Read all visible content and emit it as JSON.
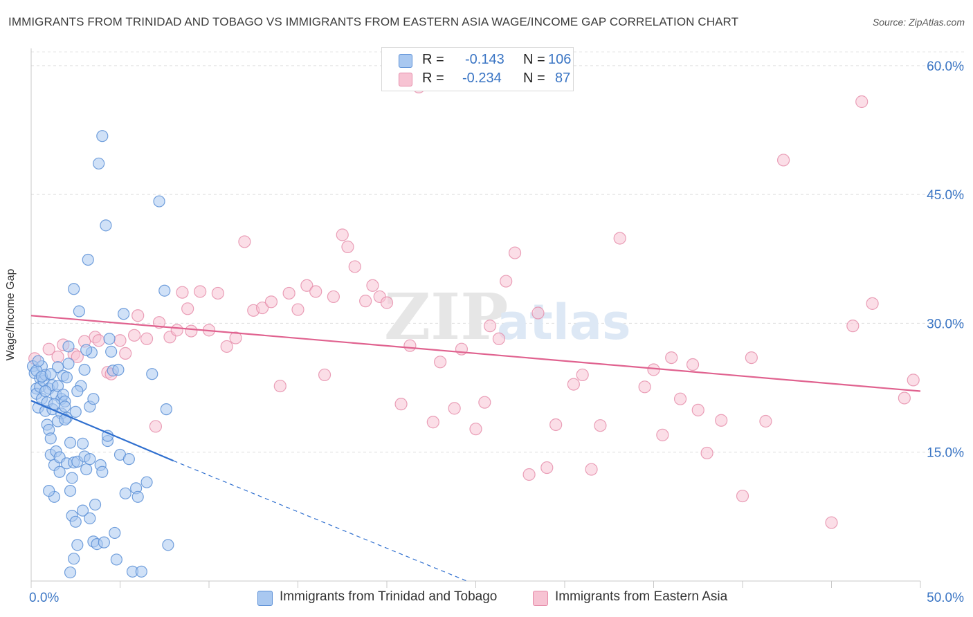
{
  "title": "IMMIGRANTS FROM TRINIDAD AND TOBAGO VS IMMIGRANTS FROM EASTERN ASIA WAGE/INCOME GAP CORRELATION CHART",
  "source": "Source: ZipAtlas.com",
  "watermark": {
    "zip": "ZIP",
    "atlas": "atlas"
  },
  "legend": {
    "r_label": "R =",
    "n_label": "N =",
    "rows": [
      {
        "r": "-0.143",
        "n": "106",
        "color": "#a9c8f0",
        "border": "#5b8fd6"
      },
      {
        "r": "-0.234",
        "n": "87",
        "color": "#f7c3d3",
        "border": "#e58aa8"
      }
    ]
  },
  "chart_data": {
    "type": "scatter",
    "title": "IMMIGRANTS FROM TRINIDAD AND TOBAGO VS IMMIGRANTS FROM EASTERN ASIA WAGE/INCOME GAP CORRELATION CHART",
    "xlabel": "",
    "ylabel": "Wage/Income Gap",
    "xlim": [
      0,
      50
    ],
    "ylim": [
      0,
      62
    ],
    "x_tick_labels": [
      "0.0%",
      "50.0%"
    ],
    "y_ticks": [
      15,
      30,
      45,
      60
    ],
    "y_tick_labels": [
      "15.0%",
      "30.0%",
      "45.0%",
      "60.0%"
    ],
    "grid": true,
    "series": [
      {
        "name": "Immigrants from Trinidad and Tobago",
        "color": "#5b8fd6",
        "fill": "#a9c8f0",
        "trend": {
          "x": [
            0,
            8
          ],
          "y": [
            21.0,
            14.0
          ],
          "dashed_to": [
            24.5,
            0
          ]
        },
        "points": [
          [
            0.1,
            25.0
          ],
          [
            0.2,
            24.2
          ],
          [
            0.3,
            22.4
          ],
          [
            0.3,
            21.8
          ],
          [
            0.4,
            20.2
          ],
          [
            0.5,
            23.6
          ],
          [
            0.5,
            22.6
          ],
          [
            0.6,
            25.0
          ],
          [
            0.6,
            21.2
          ],
          [
            0.7,
            23.3
          ],
          [
            0.8,
            24.0
          ],
          [
            0.8,
            19.8
          ],
          [
            0.9,
            20.8
          ],
          [
            0.9,
            18.2
          ],
          [
            1.0,
            22.4
          ],
          [
            1.0,
            17.6
          ],
          [
            1.1,
            16.6
          ],
          [
            1.1,
            14.7
          ],
          [
            1.2,
            22.8
          ],
          [
            1.2,
            20.0
          ],
          [
            1.3,
            13.5
          ],
          [
            1.3,
            9.8
          ],
          [
            1.4,
            15.1
          ],
          [
            1.4,
            21.7
          ],
          [
            1.5,
            22.7
          ],
          [
            1.5,
            24.9
          ],
          [
            1.6,
            14.4
          ],
          [
            1.6,
            12.7
          ],
          [
            1.7,
            21.2
          ],
          [
            1.7,
            19.5
          ],
          [
            1.8,
            23.9
          ],
          [
            1.8,
            21.7
          ],
          [
            1.9,
            20.9
          ],
          [
            1.9,
            20.3
          ],
          [
            2.0,
            19.0
          ],
          [
            2.0,
            13.7
          ],
          [
            2.1,
            27.3
          ],
          [
            2.1,
            25.3
          ],
          [
            2.2,
            16.1
          ],
          [
            2.2,
            10.5
          ],
          [
            2.3,
            7.6
          ],
          [
            2.3,
            12.0
          ],
          [
            2.4,
            13.8
          ],
          [
            2.4,
            34.0
          ],
          [
            2.5,
            6.9
          ],
          [
            2.5,
            19.7
          ],
          [
            2.6,
            13.9
          ],
          [
            2.7,
            31.4
          ],
          [
            2.8,
            22.7
          ],
          [
            2.9,
            8.2
          ],
          [
            3.0,
            14.5
          ],
          [
            3.0,
            24.6
          ],
          [
            3.1,
            13.0
          ],
          [
            3.2,
            37.4
          ],
          [
            3.3,
            7.3
          ],
          [
            3.3,
            20.3
          ],
          [
            3.4,
            26.6
          ],
          [
            3.5,
            21.2
          ],
          [
            3.5,
            4.6
          ],
          [
            3.6,
            8.9
          ],
          [
            3.7,
            4.3
          ],
          [
            3.8,
            48.6
          ],
          [
            3.9,
            13.5
          ],
          [
            4.0,
            12.7
          ],
          [
            4.1,
            4.5
          ],
          [
            4.2,
            41.4
          ],
          [
            4.3,
            16.3
          ],
          [
            4.3,
            16.9
          ],
          [
            4.4,
            28.2
          ],
          [
            4.5,
            26.7
          ],
          [
            4.6,
            24.5
          ],
          [
            4.7,
            5.6
          ],
          [
            4.8,
            2.5
          ],
          [
            4.9,
            24.6
          ],
          [
            5.0,
            14.7
          ],
          [
            5.2,
            31.1
          ],
          [
            5.3,
            10.2
          ],
          [
            5.5,
            14.2
          ],
          [
            5.7,
            1.1
          ],
          [
            5.9,
            10.8
          ],
          [
            6.0,
            9.8
          ],
          [
            6.2,
            1.1
          ],
          [
            6.5,
            11.5
          ],
          [
            6.8,
            24.1
          ],
          [
            7.2,
            44.2
          ],
          [
            7.5,
            33.8
          ],
          [
            7.6,
            20.0
          ],
          [
            7.7,
            4.2
          ],
          [
            2.4,
            2.6
          ],
          [
            2.2,
            1.0
          ],
          [
            1.0,
            10.5
          ],
          [
            2.6,
            4.2
          ],
          [
            3.1,
            26.9
          ],
          [
            2.0,
            23.7
          ],
          [
            2.6,
            22.1
          ],
          [
            3.3,
            14.2
          ],
          [
            1.5,
            18.6
          ],
          [
            0.8,
            22.1
          ],
          [
            0.3,
            24.5
          ],
          [
            4.0,
            51.8
          ],
          [
            1.3,
            20.6
          ],
          [
            1.9,
            18.8
          ],
          [
            2.9,
            16.0
          ],
          [
            0.6,
            23.8
          ],
          [
            1.1,
            24.1
          ],
          [
            0.4,
            25.6
          ]
        ]
      },
      {
        "name": "Immigrants from Eastern Asia",
        "color": "#e58aa8",
        "fill": "#f7c3d3",
        "trend": {
          "x": [
            0,
            50
          ],
          "y": [
            30.9,
            22.1
          ]
        },
        "points": [
          [
            0.2,
            25.9
          ],
          [
            1.0,
            27.0
          ],
          [
            1.5,
            26.1
          ],
          [
            1.8,
            27.5
          ],
          [
            2.4,
            26.4
          ],
          [
            2.6,
            26.1
          ],
          [
            3.0,
            27.9
          ],
          [
            3.6,
            28.4
          ],
          [
            3.8,
            28.0
          ],
          [
            4.3,
            24.3
          ],
          [
            4.5,
            24.1
          ],
          [
            5.0,
            28.0
          ],
          [
            5.3,
            26.5
          ],
          [
            5.8,
            28.6
          ],
          [
            6.0,
            30.9
          ],
          [
            6.5,
            28.2
          ],
          [
            7.0,
            18.0
          ],
          [
            7.2,
            30.1
          ],
          [
            7.8,
            28.4
          ],
          [
            8.2,
            29.2
          ],
          [
            8.5,
            33.6
          ],
          [
            8.8,
            31.7
          ],
          [
            9.0,
            29.1
          ],
          [
            9.5,
            33.7
          ],
          [
            10.0,
            29.2
          ],
          [
            10.5,
            33.5
          ],
          [
            11.0,
            27.3
          ],
          [
            11.5,
            28.3
          ],
          [
            12.0,
            39.5
          ],
          [
            12.5,
            31.5
          ],
          [
            13.0,
            31.8
          ],
          [
            13.5,
            32.5
          ],
          [
            14.0,
            22.7
          ],
          [
            14.5,
            33.5
          ],
          [
            15.0,
            31.6
          ],
          [
            15.5,
            34.4
          ],
          [
            16.0,
            33.7
          ],
          [
            16.5,
            24.0
          ],
          [
            17.0,
            33.1
          ],
          [
            17.5,
            40.3
          ],
          [
            17.8,
            38.9
          ],
          [
            18.2,
            36.6
          ],
          [
            18.8,
            32.6
          ],
          [
            19.2,
            34.4
          ],
          [
            19.6,
            33.1
          ],
          [
            20.0,
            32.4
          ],
          [
            20.8,
            20.6
          ],
          [
            21.3,
            27.4
          ],
          [
            21.8,
            57.5
          ],
          [
            22.6,
            18.5
          ],
          [
            23.0,
            25.5
          ],
          [
            23.8,
            20.1
          ],
          [
            24.2,
            27.0
          ],
          [
            25.0,
            17.7
          ],
          [
            25.5,
            20.8
          ],
          [
            25.8,
            29.7
          ],
          [
            26.3,
            28.2
          ],
          [
            26.7,
            34.9
          ],
          [
            27.2,
            38.2
          ],
          [
            28.0,
            12.4
          ],
          [
            28.5,
            31.2
          ],
          [
            29.0,
            13.2
          ],
          [
            29.5,
            18.2
          ],
          [
            30.5,
            22.9
          ],
          [
            31.0,
            24.0
          ],
          [
            31.5,
            13.0
          ],
          [
            32.0,
            18.1
          ],
          [
            33.1,
            39.9
          ],
          [
            34.5,
            22.6
          ],
          [
            35.0,
            24.6
          ],
          [
            35.5,
            17.0
          ],
          [
            36.0,
            26.0
          ],
          [
            36.5,
            21.2
          ],
          [
            37.2,
            25.2
          ],
          [
            37.5,
            19.9
          ],
          [
            38.0,
            14.9
          ],
          [
            38.8,
            18.7
          ],
          [
            40.0,
            9.9
          ],
          [
            40.5,
            26.0
          ],
          [
            41.3,
            18.6
          ],
          [
            42.3,
            49.0
          ],
          [
            45.0,
            6.8
          ],
          [
            46.2,
            29.7
          ],
          [
            46.7,
            55.8
          ],
          [
            47.3,
            32.3
          ],
          [
            49.1,
            21.3
          ],
          [
            49.6,
            23.4
          ]
        ]
      }
    ]
  },
  "bottom_legend": [
    {
      "label": "Immigrants from Trinidad and Tobago"
    },
    {
      "label": "Immigrants from Eastern Asia"
    }
  ]
}
